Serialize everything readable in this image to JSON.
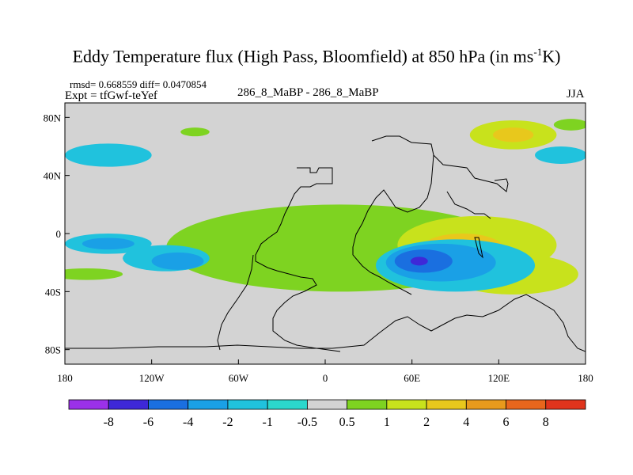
{
  "figure": {
    "title_main": "Eddy Temperature flux (High Pass, Bloomfield) at 850 hPa (in ms",
    "title_sup": "-1",
    "title_end": "K)",
    "stats": "rmsd= 0.668559 diff= 0.0470854",
    "expt": "Expt = tfGwf-teYef",
    "center_label": "286_8_MaBP - 286_8_MaBP",
    "season": "JJA"
  },
  "chart_data": {
    "type": "heatmap",
    "projection": "cylindrical equidistant",
    "x_ticks": [
      "180",
      "120W",
      "60W",
      "0",
      "60E",
      "120E",
      "180"
    ],
    "y_ticks": [
      "80N",
      "40N",
      "0",
      "40S",
      "80S"
    ],
    "xlim": [
      -180,
      180
    ],
    "ylim": [
      -90,
      90
    ],
    "background_color": "#d3d3d3",
    "colorbar": {
      "levels": [
        "-8",
        "-6",
        "-4",
        "-2",
        "-1",
        "-0.5",
        "0.5",
        "1",
        "2",
        "4",
        "6",
        "8"
      ],
      "colors": [
        "#9b31e9",
        "#3e28d8",
        "#1a6fe0",
        "#1aa0e6",
        "#20c2dd",
        "#2bd7cc",
        "#d3d3d3",
        "#7ed321",
        "#c8e21c",
        "#e8c81c",
        "#e89a1c",
        "#e8661c",
        "#e0341c"
      ]
    },
    "regions": [
      {
        "lon": 10,
        "lat": -10,
        "rx": 120,
        "ry": 30,
        "color": "#7ed321"
      },
      {
        "lon": 105,
        "lat": -8,
        "rx": 55,
        "ry": 20,
        "color": "#c8e21c"
      },
      {
        "lon": 95,
        "lat": -10,
        "rx": 28,
        "ry": 10,
        "color": "#e8c81c"
      },
      {
        "lon": 70,
        "lat": -12,
        "rx": 12,
        "ry": 6,
        "color": "#e89a1c"
      },
      {
        "lon": 130,
        "lat": -28,
        "rx": 45,
        "ry": 14,
        "color": "#c8e21c"
      },
      {
        "lon": 90,
        "lat": -22,
        "rx": 55,
        "ry": 18,
        "color": "#20c2dd"
      },
      {
        "lon": 80,
        "lat": -20,
        "rx": 38,
        "ry": 13,
        "color": "#1aa0e6"
      },
      {
        "lon": 68,
        "lat": -19,
        "rx": 20,
        "ry": 8,
        "color": "#1a6fe0"
      },
      {
        "lon": 65,
        "lat": -19,
        "rx": 6,
        "ry": 3,
        "color": "#3e28d8"
      },
      {
        "lon": -150,
        "lat": -7,
        "rx": 30,
        "ry": 7,
        "color": "#20c2dd"
      },
      {
        "lon": -150,
        "lat": -7,
        "rx": 18,
        "ry": 4,
        "color": "#1aa0e6"
      },
      {
        "lon": -110,
        "lat": -17,
        "rx": 30,
        "ry": 9,
        "color": "#20c2dd"
      },
      {
        "lon": -102,
        "lat": -19,
        "rx": 18,
        "ry": 6,
        "color": "#1aa0e6"
      },
      {
        "lon": -165,
        "lat": -28,
        "rx": 25,
        "ry": 4,
        "color": "#7ed321"
      },
      {
        "lon": 130,
        "lat": 68,
        "rx": 30,
        "ry": 10,
        "color": "#c8e21c"
      },
      {
        "lon": 130,
        "lat": 68,
        "rx": 14,
        "ry": 5,
        "color": "#e8c81c"
      },
      {
        "lon": -150,
        "lat": 54,
        "rx": 30,
        "ry": 8,
        "color": "#20c2dd"
      },
      {
        "lon": 163,
        "lat": 54,
        "rx": 18,
        "ry": 6,
        "color": "#20c2dd"
      },
      {
        "lon": 170,
        "lat": 75,
        "rx": 12,
        "ry": 4,
        "color": "#7ed321"
      },
      {
        "lon": -90,
        "lat": 70,
        "rx": 10,
        "ry": 3,
        "color": "#7ed321"
      }
    ]
  }
}
